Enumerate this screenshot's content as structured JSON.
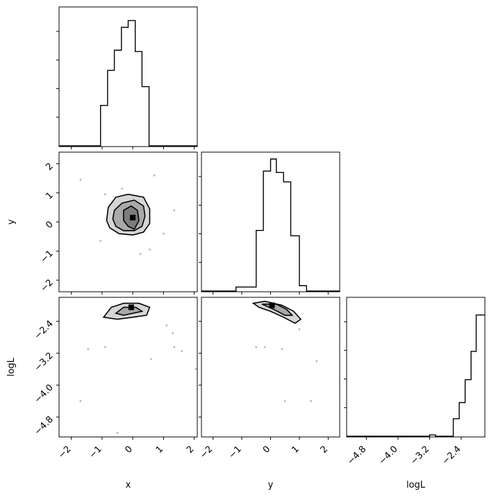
{
  "chart_data": {
    "type": "corner",
    "parameters": [
      "x",
      "y",
      "logL"
    ],
    "axis_labels": {
      "x": "x",
      "y": "y",
      "logL": "logL"
    },
    "grid": false,
    "panels": [
      {
        "kind": "hist",
        "row": 0,
        "col": 0,
        "param": "x",
        "xlim": [
          -2.4,
          2.1
        ],
        "bins": [
          [
            -2.4,
            -1.95,
            0
          ],
          [
            -1.95,
            -1.5,
            0
          ],
          [
            -1.5,
            -1.05,
            0
          ],
          [
            -1.05,
            -0.82,
            0.3
          ],
          [
            -0.82,
            -0.6,
            0.56
          ],
          [
            -0.6,
            -0.37,
            0.71
          ],
          [
            -0.37,
            -0.15,
            0.88
          ],
          [
            -0.15,
            0.08,
            0.93
          ],
          [
            0.08,
            0.3,
            0.7
          ],
          [
            0.3,
            0.53,
            0.44
          ],
          [
            0.53,
            1.0,
            0
          ],
          [
            1.0,
            1.5,
            0
          ],
          [
            1.5,
            2.1,
            0
          ]
        ]
      },
      {
        "kind": "scatter2d",
        "row": 1,
        "col": 0,
        "xparam": "x",
        "yparam": "y",
        "xlim": [
          -2.4,
          2.1
        ],
        "ylim": [
          -2.4,
          2.4
        ],
        "points": [
          [
            -1.7,
            1.45
          ],
          [
            -1.05,
            -0.65
          ],
          [
            1.35,
            0.4
          ],
          [
            0.7,
            1.6
          ],
          [
            0.25,
            -1.1
          ],
          [
            -0.9,
            0.95
          ],
          [
            0.55,
            -0.95
          ],
          [
            -0.35,
            1.15
          ],
          [
            1.0,
            -0.4
          ]
        ],
        "contours": [
          [
            [
              -0.85,
              0.05
            ],
            [
              -0.8,
              0.5
            ],
            [
              -0.55,
              0.85
            ],
            [
              -0.15,
              0.95
            ],
            [
              0.35,
              0.85
            ],
            [
              0.55,
              0.45
            ],
            [
              0.55,
              -0.05
            ],
            [
              0.35,
              -0.35
            ],
            [
              0.0,
              -0.45
            ],
            [
              -0.45,
              -0.4
            ],
            [
              -0.75,
              -0.2
            ]
          ],
          [
            [
              -0.65,
              0.1
            ],
            [
              -0.6,
              0.4
            ],
            [
              -0.35,
              0.65
            ],
            [
              0.05,
              0.75
            ],
            [
              0.35,
              0.55
            ],
            [
              0.4,
              0.2
            ],
            [
              0.3,
              -0.15
            ],
            [
              0.05,
              -0.3
            ],
            [
              -0.3,
              -0.3
            ],
            [
              -0.55,
              -0.15
            ]
          ],
          [
            [
              -0.3,
              0.05
            ],
            [
              -0.3,
              0.4
            ],
            [
              -0.05,
              0.55
            ],
            [
              0.15,
              0.4
            ],
            [
              0.2,
              0.05
            ],
            [
              0.05,
              -0.25
            ],
            [
              -0.15,
              -0.15
            ]
          ]
        ],
        "density_peak": [
          0.0,
          0.15
        ]
      },
      {
        "kind": "hist",
        "row": 1,
        "col": 1,
        "param": "y",
        "xlim": [
          -2.4,
          2.4
        ],
        "bins": [
          [
            -2.4,
            -1.2,
            0
          ],
          [
            -1.2,
            -0.5,
            0.03
          ],
          [
            -0.5,
            -0.25,
            0.45
          ],
          [
            -0.25,
            0.0,
            0.89
          ],
          [
            0.0,
            0.2,
            0.98
          ],
          [
            0.2,
            0.45,
            0.88
          ],
          [
            0.45,
            0.7,
            0.81
          ],
          [
            0.7,
            1.0,
            0.41
          ],
          [
            1.0,
            1.25,
            0.04
          ],
          [
            1.25,
            2.4,
            0
          ]
        ]
      },
      {
        "kind": "scatter2d",
        "row": 2,
        "col": 0,
        "xparam": "x",
        "yparam": "logL",
        "xlim": [
          -2.4,
          2.1
        ],
        "ylim": [
          -5.3,
          -1.8
        ],
        "points": [
          [
            -1.45,
            -3.1
          ],
          [
            -1.7,
            -4.4
          ],
          [
            -0.9,
            -3.05
          ],
          [
            1.35,
            -3.05
          ],
          [
            1.1,
            -2.5
          ],
          [
            0.6,
            -3.35
          ],
          [
            -0.5,
            -5.2
          ],
          [
            1.6,
            -3.15
          ],
          [
            2.05,
            -3.6
          ],
          [
            -0.2,
            -2.05
          ],
          [
            1.3,
            -2.7
          ]
        ],
        "contours": [
          [
            [
              -0.95,
              -2.3
            ],
            [
              -0.7,
              -2.05
            ],
            [
              -0.3,
              -1.95
            ],
            [
              0.2,
              -1.95
            ],
            [
              0.55,
              -2.05
            ],
            [
              0.45,
              -2.25
            ],
            [
              0.0,
              -2.3
            ],
            [
              -0.5,
              -2.35
            ]
          ],
          [
            [
              -0.55,
              -2.2
            ],
            [
              -0.3,
              -2.05
            ],
            [
              0.1,
              -2.05
            ],
            [
              0.3,
              -2.15
            ],
            [
              0.0,
              -2.2
            ],
            [
              -0.3,
              -2.25
            ]
          ]
        ],
        "density_peak": [
          -0.05,
          -2.05
        ]
      },
      {
        "kind": "scatter2d",
        "row": 2,
        "col": 1,
        "xparam": "y",
        "yparam": "logL",
        "xlim": [
          -2.4,
          2.4
        ],
        "ylim": [
          -5.3,
          -1.8
        ],
        "points": [
          [
            -0.5,
            -3.05
          ],
          [
            -0.2,
            -3.05
          ],
          [
            0.4,
            -3.1
          ],
          [
            1.6,
            -3.4
          ],
          [
            0.5,
            -4.4
          ],
          [
            1.0,
            -2.6
          ],
          [
            1.4,
            -4.4
          ]
        ],
        "contours": [
          [
            [
              -0.6,
              -1.95
            ],
            [
              -0.2,
              -1.9
            ],
            [
              0.4,
              -2.0
            ],
            [
              0.8,
              -2.15
            ],
            [
              1.05,
              -2.35
            ],
            [
              0.85,
              -2.45
            ],
            [
              0.45,
              -2.3
            ],
            [
              0.0,
              -2.15
            ],
            [
              -0.4,
              -2.05
            ]
          ],
          [
            [
              -0.3,
              -1.97
            ],
            [
              0.2,
              -1.97
            ],
            [
              0.55,
              -2.1
            ],
            [
              0.75,
              -2.25
            ],
            [
              0.5,
              -2.25
            ],
            [
              0.1,
              -2.1
            ]
          ]
        ],
        "density_peak": [
          0.05,
          -2.0
        ]
      },
      {
        "kind": "hist",
        "row": 2,
        "col": 2,
        "param": "logL",
        "xlim": [
          -5.3,
          -1.8
        ],
        "bins": [
          [
            -5.3,
            -3.2,
            0
          ],
          [
            -3.2,
            -3.05,
            0.01
          ],
          [
            -3.05,
            -2.6,
            0
          ],
          [
            -2.6,
            -2.45,
            0.13
          ],
          [
            -2.45,
            -2.3,
            0.25
          ],
          [
            -2.3,
            -2.15,
            0.42
          ],
          [
            -2.15,
            -2.02,
            0.63
          ],
          [
            -2.02,
            -1.8,
            0.9
          ]
        ]
      }
    ],
    "ticks": {
      "x": [
        "−2",
        "−1",
        "0",
        "1",
        "2"
      ],
      "y": [
        "−2",
        "−1",
        "0",
        "1",
        "2"
      ],
      "logL": [
        "−4.8",
        "−4.0",
        "−3.2",
        "−2.4"
      ]
    },
    "tick_values": {
      "x": [
        -2,
        -1,
        0,
        1,
        2
      ],
      "y": [
        -2,
        -1,
        0,
        1,
        2
      ],
      "logL": [
        -4.8,
        -4.0,
        -3.2,
        -2.4
      ]
    }
  }
}
